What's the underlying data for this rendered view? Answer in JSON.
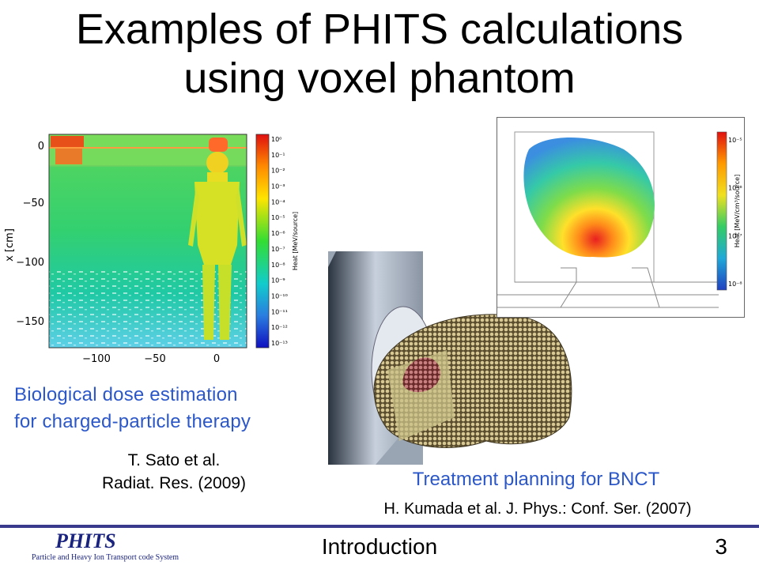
{
  "slide": {
    "title_line1": "Examples of PHITS calculations",
    "title_line2": "using voxel phantom"
  },
  "dose_figure": {
    "y_axis_label": "x [cm]",
    "y_ticks": [
      "0",
      "−50",
      "−100",
      "−150"
    ],
    "x_ticks": [
      "−100",
      "−50",
      "0"
    ],
    "colorbar_label": "Heat [MeV/source]",
    "colorbar_ticks": [
      "10⁰",
      "10⁻¹",
      "10⁻²",
      "10⁻³",
      "10⁻⁴",
      "10⁻⁵",
      "10⁻⁶",
      "10⁻⁷",
      "10⁻⁸",
      "10⁻⁹",
      "10⁻¹⁰",
      "10⁻¹¹",
      "10⁻¹²",
      "10⁻¹³"
    ]
  },
  "left_caption": {
    "line1": "Biological dose estimation",
    "line2": "for charged-particle therapy"
  },
  "left_reference": {
    "line1": "T. Sato et al.",
    "line2": "Radiat. Res. (2009)"
  },
  "heat_figure": {
    "colorbar_label": "Heat [MeV/cm³/source]",
    "colorbar_ticks": [
      "10⁻⁵",
      "10⁻⁶",
      "10⁻⁷",
      "10⁻⁸"
    ]
  },
  "right_caption": "Treatment planning for BNCT",
  "right_reference": "H. Kumada et al. J. Phys.: Conf. Ser. (2007)",
  "footer": {
    "logo_text": "PHITS",
    "logo_subtitle": "Particle and Heavy Ion Transport code System",
    "section": "Introduction",
    "page_number": "3"
  },
  "colors": {
    "caption_blue": "#2b57c8",
    "footer_line": "#3a3a8c",
    "logo": "#1a237e"
  }
}
